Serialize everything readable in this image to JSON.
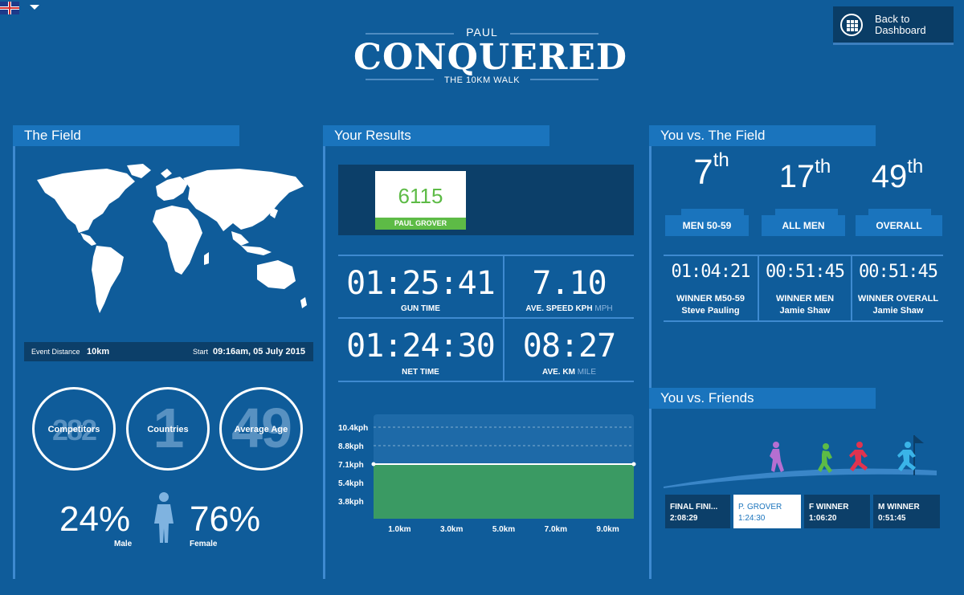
{
  "header": {
    "language_icon": "uk-flag-icon",
    "name": "PAUL",
    "title": "CONQUERED",
    "subtitle": "THE 10KM WALK",
    "back_label": "Back to Dashboard"
  },
  "field": {
    "heading": "The Field",
    "distance_label": "Event Distance",
    "distance_value": "10km",
    "start_label": "Start",
    "start_value": "09:16am, 05 July 2015",
    "stats": [
      {
        "value": "282",
        "label": "Competitors"
      },
      {
        "value": "1",
        "label": "Countries"
      },
      {
        "value": "49",
        "label": "Average Age"
      }
    ],
    "male_pct": "24%",
    "male_label": "Male",
    "female_pct": "76%",
    "female_label": "Female"
  },
  "results": {
    "heading": "Your Results",
    "bib_number": "6115",
    "bib_name": "PAUL GROVER",
    "gun_time": "01:25:41",
    "gun_time_label": "GUN TIME",
    "ave_speed": "7.10",
    "ave_speed_label": "AVE. SPEED KPH",
    "ave_speed_alt": "MPH",
    "net_time": "01:24:30",
    "net_time_label": "NET TIME",
    "ave_km": "08:27",
    "ave_km_label": "AVE. KM",
    "ave_km_alt": "MILE"
  },
  "chart_data": {
    "type": "area",
    "y_ticks": [
      "10.4kph",
      "8.8kph",
      "7.1kph",
      "5.4kph",
      "3.8kph"
    ],
    "x_ticks": [
      "1.0km",
      "3.0km",
      "5.0km",
      "7.0km",
      "9.0km"
    ],
    "x": [
      0,
      10
    ],
    "values": [
      7.1,
      7.1
    ],
    "colors": {
      "fill": "#3a9a63",
      "bg": "#1e6aa8",
      "line": "#ffffff"
    }
  },
  "vs_field": {
    "heading": "You vs. The Field",
    "ranks": [
      {
        "num": "7",
        "suffix": "th",
        "label": "MEN 50-59"
      },
      {
        "num": "17",
        "suffix": "th",
        "label": "ALL MEN"
      },
      {
        "num": "49",
        "suffix": "th",
        "label": "OVERALL"
      }
    ],
    "winners": [
      {
        "time": "01:04:21",
        "title": "WINNER M50-59",
        "name": "Steve Pauling"
      },
      {
        "time": "00:51:45",
        "title": "WINNER MEN",
        "name": "Jamie Shaw"
      },
      {
        "time": "00:51:45",
        "title": "WINNER OVERALL",
        "name": "Jamie Shaw"
      }
    ]
  },
  "vs_friends": {
    "heading": "You vs. Friends",
    "tabs": [
      {
        "title": "FINAL FINI...",
        "time": "2:08:29"
      },
      {
        "title": "P. GROVER",
        "time": "1:24:30"
      },
      {
        "title": "F WINNER",
        "time": "1:06:20"
      },
      {
        "title": "M WINNER",
        "time": "0:51:45"
      }
    ],
    "runner_colors": [
      "#b56fd1",
      "#5dbb46",
      "#e0334f",
      "#3ab4e8"
    ]
  }
}
